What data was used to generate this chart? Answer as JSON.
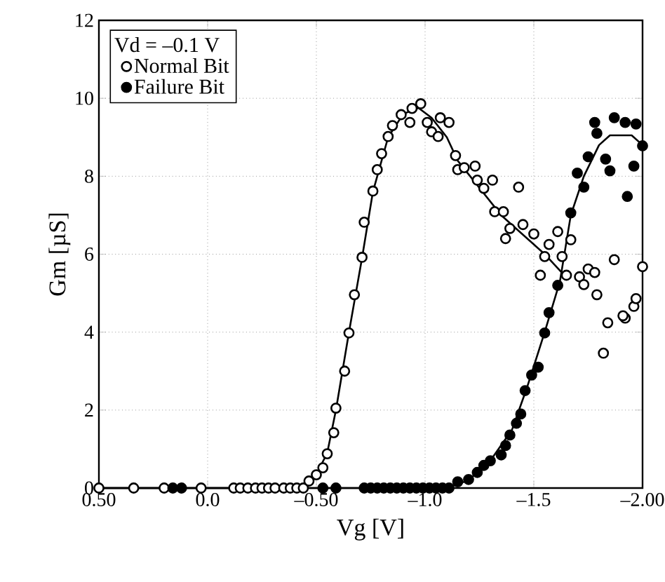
{
  "chart_data": {
    "type": "scatter",
    "xlabel": "Vg [V]",
    "ylabel": "Gm [µS]",
    "legend_title": "Vd = –0.1 V",
    "xlim": [
      0.5,
      -2.0
    ],
    "xticks": [
      {
        "value": 0.5,
        "label": "0.50"
      },
      {
        "value": 0.0,
        "label": "0.0"
      },
      {
        "value": -0.5,
        "label": "–0.50"
      },
      {
        "value": -1.0,
        "label": "–1.0"
      },
      {
        "value": -1.5,
        "label": "–1.5"
      },
      {
        "value": -2.0,
        "label": "–2.00"
      }
    ],
    "ylim": [
      0,
      12
    ],
    "yticks": [
      0,
      2,
      4,
      6,
      8,
      10,
      12
    ],
    "grid": true,
    "legend": "top left",
    "series": [
      {
        "name": "Normal Bit",
        "marker": "circle",
        "color": "#ffffff",
        "x": [
          0.5,
          0.34,
          0.2,
          0.03,
          -0.12,
          -0.15,
          -0.185,
          -0.22,
          -0.25,
          -0.28,
          -0.31,
          -0.35,
          -0.38,
          -0.41,
          -0.44,
          -0.466,
          -0.5,
          -0.53,
          -0.55,
          -0.58,
          -0.59,
          -0.63,
          -0.65,
          -0.675,
          -0.71,
          -0.72,
          -0.76,
          -0.78,
          -0.8,
          -0.83,
          -0.85,
          -0.89,
          -0.94,
          -0.93,
          -0.98,
          -1.01,
          -1.03,
          -1.06,
          -1.07,
          -1.11,
          -1.14,
          -1.15,
          -1.18,
          -1.23,
          -1.24,
          -1.27,
          -1.31,
          -1.32,
          -1.36,
          -1.43,
          -1.39,
          -1.37,
          -1.45,
          -1.5,
          -1.55,
          -1.57,
          -1.61,
          -1.63,
          -1.67,
          -1.53,
          -1.65,
          -1.71,
          -1.75,
          -1.78,
          -1.87,
          -2.0,
          -1.73,
          -1.79,
          -1.84,
          -1.82,
          -1.92,
          -1.96,
          -1.97,
          -1.91
        ],
        "values": [
          0,
          0,
          0,
          0,
          0,
          0,
          0,
          0,
          0,
          0,
          0,
          0,
          0,
          0,
          0,
          0.18,
          0.34,
          0.52,
          0.88,
          1.42,
          2.05,
          3.0,
          3.98,
          4.96,
          5.92,
          6.82,
          7.62,
          8.17,
          8.58,
          9.02,
          9.3,
          9.58,
          9.74,
          9.38,
          9.86,
          9.38,
          9.14,
          9.02,
          9.5,
          9.38,
          8.53,
          8.17,
          8.22,
          8.26,
          7.9,
          7.69,
          7.9,
          7.09,
          7.09,
          7.72,
          6.66,
          6.4,
          6.76,
          6.52,
          5.94,
          6.25,
          6.58,
          5.94,
          6.37,
          5.46,
          5.46,
          5.42,
          5.62,
          5.53,
          5.86,
          5.68,
          5.22,
          4.96,
          4.24,
          3.46,
          4.36,
          4.66,
          4.86,
          4.42
        ]
      },
      {
        "name": "Failure Bit",
        "marker": "circle",
        "color": "#000000",
        "x": [
          0.16,
          0.12,
          -0.53,
          -0.59,
          -0.72,
          -0.75,
          -0.78,
          -0.81,
          -0.84,
          -0.87,
          -0.9,
          -0.93,
          -0.96,
          -0.99,
          -1.02,
          -1.05,
          -1.08,
          -1.11,
          -1.15,
          -1.2,
          -1.24,
          -1.27,
          -1.3,
          -1.35,
          -1.37,
          -1.39,
          -1.42,
          -1.44,
          -1.46,
          -1.49,
          -1.52,
          -1.55,
          -1.57,
          -1.61,
          -1.67,
          -1.73,
          -1.7,
          -1.75,
          -1.78,
          -1.79,
          -1.83,
          -1.85,
          -1.87,
          -1.92,
          -1.96,
          -1.93,
          -1.97,
          -2.0
        ],
        "values": [
          0,
          0,
          0,
          0,
          0,
          0,
          0,
          0,
          0,
          0,
          0,
          0,
          0,
          0,
          0,
          0,
          0,
          0,
          0.16,
          0.22,
          0.4,
          0.58,
          0.7,
          0.85,
          1.09,
          1.36,
          1.66,
          1.9,
          2.5,
          2.9,
          3.1,
          3.98,
          4.5,
          5.2,
          7.06,
          7.72,
          8.08,
          8.5,
          9.38,
          9.1,
          8.44,
          8.14,
          9.5,
          9.38,
          8.26,
          7.48,
          9.34,
          8.78
        ]
      },
      {
        "type": "line",
        "marker": "none",
        "line_style": "solid",
        "color": "#000000",
        "x": [
          0.5,
          -0.44,
          -0.47,
          -0.5,
          -0.55,
          -0.59,
          -0.65,
          -0.71,
          -0.76,
          -0.83,
          -0.9,
          -0.97,
          -1.03,
          -1.1,
          -1.15,
          -1.25,
          -1.35,
          -1.45,
          -1.55,
          -1.65
        ],
        "values": [
          0,
          0,
          0.15,
          0.35,
          0.9,
          2.0,
          4.0,
          5.9,
          7.6,
          9.0,
          9.6,
          9.75,
          9.5,
          9.0,
          8.4,
          7.7,
          7.0,
          6.5,
          6.0,
          5.4
        ]
      },
      {
        "type": "line",
        "marker": "none",
        "line_style": "solid",
        "color": "#000000",
        "x": [
          0.5,
          -1.1,
          -1.2,
          -1.3,
          -1.4,
          -1.47,
          -1.55,
          -1.62,
          -1.67,
          -1.73,
          -1.8,
          -1.85,
          -1.95,
          -2.0
        ],
        "values": [
          0,
          0,
          0.2,
          0.7,
          1.5,
          2.6,
          4.0,
          5.3,
          7.0,
          8.0,
          8.8,
          9.05,
          9.05,
          8.8
        ]
      }
    ]
  }
}
